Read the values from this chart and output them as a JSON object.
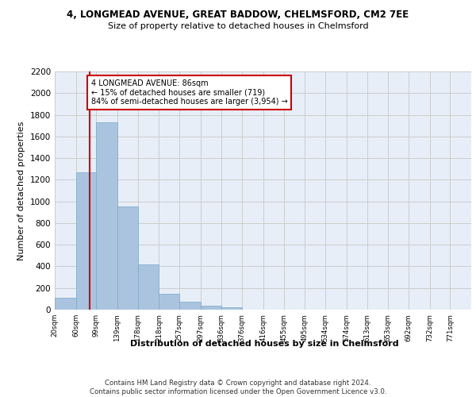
{
  "title_line1": "4, LONGMEAD AVENUE, GREAT BADDOW, CHELMSFORD, CM2 7EE",
  "title_line2": "Size of property relative to detached houses in Chelmsford",
  "xlabel": "Distribution of detached houses by size in Chelmsford",
  "ylabel": "Number of detached properties",
  "footer_line1": "Contains HM Land Registry data © Crown copyright and database right 2024.",
  "footer_line2": "Contains public sector information licensed under the Open Government Licence v3.0.",
  "annotation_line1": "4 LONGMEAD AVENUE: 86sqm",
  "annotation_line2": "← 15% of detached houses are smaller (719)",
  "annotation_line3": "84% of semi-detached houses are larger (3,954) →",
  "property_size_sqm": 86,
  "bar_edges": [
    20,
    60,
    99,
    139,
    178,
    218,
    257,
    297,
    336,
    376,
    416,
    455,
    495,
    534,
    574,
    613,
    653,
    692,
    732,
    771,
    811
  ],
  "bar_heights": [
    110,
    1270,
    1730,
    950,
    415,
    150,
    70,
    40,
    25,
    0,
    0,
    0,
    0,
    0,
    0,
    0,
    0,
    0,
    0,
    0
  ],
  "bar_color": "#aac4e0",
  "bar_edgecolor": "#7aaaca",
  "vline_color": "#cc0000",
  "vline_x": 86,
  "annotation_box_edgecolor": "#cc0000",
  "annotation_box_facecolor": "#ffffff",
  "grid_color": "#cccccc",
  "background_color": "#e8eef8",
  "ylim": [
    0,
    2200
  ],
  "yticks": [
    0,
    200,
    400,
    600,
    800,
    1000,
    1200,
    1400,
    1600,
    1800,
    2000,
    2200
  ]
}
